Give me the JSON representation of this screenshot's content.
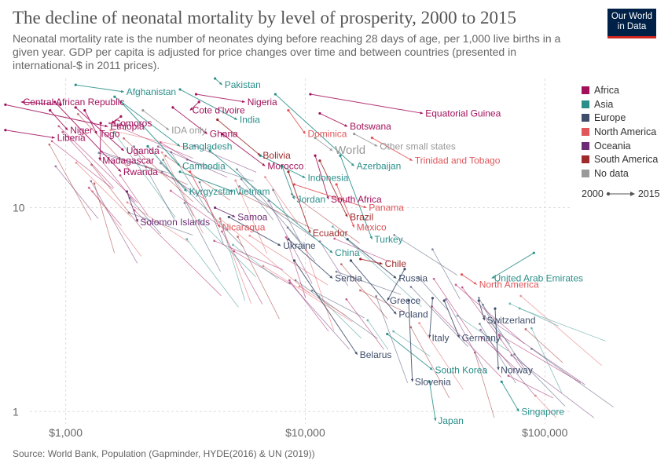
{
  "header": {
    "title": "The decline of neonatal mortality by level of prosperity, 2000 to 2015",
    "subtitle": "Neonatal mortality rate is the number of neonates dying before reaching 28 days of age, per 1,000 live births in a given year. GDP per capita is adjusted for price changes over time and between countries (presented in international-$ in 2011 prices).",
    "logo_line1": "Our World",
    "logo_line2": "in Data"
  },
  "source": "Source: World Bank, Population (Gapminder, HYDE(2016) & UN (2019))",
  "time_legend": {
    "start": "2000",
    "end": "2015"
  },
  "colors": {
    "Africa": "#a2105b",
    "Asia": "#2a8f8a",
    "Europe": "#3f4d6b",
    "North America": "#e0565b",
    "Oceania": "#6b2c75",
    "South America": "#9e2a2b",
    "No data": "#999999"
  },
  "legend": [
    "Africa",
    "Asia",
    "Europe",
    "North America",
    "Oceania",
    "South America",
    "No data"
  ],
  "chart_data": {
    "type": "scatter",
    "x_scale": "log",
    "y_scale": "log",
    "xlim": [
      600,
      130000
    ],
    "ylim": [
      0.87,
      43
    ],
    "x_ticks": [
      {
        "v": 1000,
        "label": "$1,000"
      },
      {
        "v": 10000,
        "label": "$10,000"
      },
      {
        "v": 100000,
        "label": "$100,000"
      }
    ],
    "y_ticks": [
      {
        "v": 1,
        "label": "1"
      },
      {
        "v": 10,
        "label": "10"
      }
    ],
    "countries": [
      {
        "name": "Central African Republic",
        "region": "Africa",
        "x0": 950,
        "y0": 32,
        "x1": 650,
        "y1": 33
      },
      {
        "name": "Liberia",
        "region": "Africa",
        "x0": 560,
        "y0": 24,
        "x1": 900,
        "y1": 22
      },
      {
        "name": "Niger",
        "region": "Africa",
        "x0": 860,
        "y0": 30,
        "x1": 1020,
        "y1": 24
      },
      {
        "name": "Comoros",
        "region": "Africa",
        "x0": 1700,
        "y0": 28,
        "x1": 1550,
        "y1": 26
      },
      {
        "name": "Togo",
        "region": "Africa",
        "x0": 1200,
        "y0": 30,
        "x1": 1350,
        "y1": 23
      },
      {
        "name": "Ethiopia",
        "region": "Africa",
        "x0": 560,
        "y0": 32,
        "x1": 1500,
        "y1": 25
      },
      {
        "name": "Madagascar",
        "region": "Africa",
        "x0": 1400,
        "y0": 26,
        "x1": 1390,
        "y1": 17
      },
      {
        "name": "Uganda",
        "region": "Africa",
        "x0": 1100,
        "y0": 31,
        "x1": 1750,
        "y1": 19
      },
      {
        "name": "Rwanda",
        "region": "Africa",
        "x0": 900,
        "y0": 33,
        "x1": 1700,
        "y1": 15
      },
      {
        "name": "Nigeria",
        "region": "Africa",
        "x0": 3500,
        "y0": 36,
        "x1": 5600,
        "y1": 33
      },
      {
        "name": "Cote d'Ivoire",
        "region": "Africa",
        "x0": 3600,
        "y0": 33,
        "x1": 3300,
        "y1": 30
      },
      {
        "name": "Ghana",
        "region": "Africa",
        "x0": 2800,
        "y0": 31,
        "x1": 3900,
        "y1": 23
      },
      {
        "name": "Equatorial Guinea",
        "region": "Africa",
        "x0": 10500,
        "y0": 36,
        "x1": 31000,
        "y1": 29
      },
      {
        "name": "Botswana",
        "region": "Africa",
        "x0": 11500,
        "y0": 29,
        "x1": 15000,
        "y1": 25
      },
      {
        "name": "Morocco",
        "region": "Africa",
        "x0": 4500,
        "y0": 23,
        "x1": 6800,
        "y1": 16
      },
      {
        "name": "South Africa",
        "region": "Africa",
        "x0": 11000,
        "y0": 18,
        "x1": 12500,
        "y1": 11
      },
      {
        "name": "Pakistan",
        "region": "Asia",
        "x0": 4200,
        "y0": 43,
        "x1": 4500,
        "y1": 40
      },
      {
        "name": "Afghanistan",
        "region": "Asia",
        "x0": 1100,
        "y0": 40,
        "x1": 1750,
        "y1": 37
      },
      {
        "name": "India",
        "region": "Asia",
        "x0": 3000,
        "y0": 38,
        "x1": 5200,
        "y1": 27
      },
      {
        "name": "Bangladesh",
        "region": "Asia",
        "x0": 1600,
        "y0": 35,
        "x1": 3000,
        "y1": 20
      },
      {
        "name": "Cambodia",
        "region": "Asia",
        "x0": 1700,
        "y0": 33,
        "x1": 3000,
        "y1": 16
      },
      {
        "name": "Kyrgyzstan",
        "region": "Asia",
        "x0": 2200,
        "y0": 20,
        "x1": 3200,
        "y1": 12
      },
      {
        "name": "Vietnam",
        "region": "Asia",
        "x0": 3000,
        "y0": 15,
        "x1": 5000,
        "y1": 12
      },
      {
        "name": "Indonesia",
        "region": "Asia",
        "x0": 6500,
        "y0": 18,
        "x1": 10000,
        "y1": 14
      },
      {
        "name": "Azerbaijan",
        "region": "Asia",
        "x0": 7500,
        "y0": 36,
        "x1": 16000,
        "y1": 16
      },
      {
        "name": "Jordan",
        "region": "Asia",
        "x0": 8000,
        "y0": 16,
        "x1": 9000,
        "y1": 11
      },
      {
        "name": "China",
        "region": "Asia",
        "x0": 4000,
        "y0": 19,
        "x1": 13000,
        "y1": 6
      },
      {
        "name": "Turkey",
        "region": "Asia",
        "x0": 14000,
        "y0": 18,
        "x1": 19000,
        "y1": 7
      },
      {
        "name": "United Arab Emirates",
        "region": "Asia",
        "x0": 90000,
        "y0": 6,
        "x1": 60000,
        "y1": 4.5
      },
      {
        "name": "South Korea",
        "region": "Asia",
        "x0": 22000,
        "y0": 2.4,
        "x1": 34000,
        "y1": 1.6
      },
      {
        "name": "Japan",
        "region": "Asia",
        "x0": 33000,
        "y0": 1.4,
        "x1": 35000,
        "y1": 0.9
      },
      {
        "name": "Singapore",
        "region": "Asia",
        "x0": 66000,
        "y0": 1.4,
        "x1": 78000,
        "y1": 1.0
      },
      {
        "name": "Ukraine",
        "region": "Europe",
        "x0": 4800,
        "y0": 9,
        "x1": 7900,
        "y1": 6.5
      },
      {
        "name": "Serbia",
        "region": "Europe",
        "x0": 8500,
        "y0": 7,
        "x1": 13000,
        "y1": 4.5
      },
      {
        "name": "Belarus",
        "region": "Europe",
        "x0": 9000,
        "y0": 5.5,
        "x1": 16500,
        "y1": 1.9
      },
      {
        "name": "Russia",
        "region": "Europe",
        "x0": 15000,
        "y0": 7,
        "x1": 24000,
        "y1": 4.5
      },
      {
        "name": "Greece",
        "region": "Europe",
        "x0": 26000,
        "y0": 5,
        "x1": 22000,
        "y1": 3.5
      },
      {
        "name": "Poland",
        "region": "Europe",
        "x0": 15500,
        "y0": 5.5,
        "x1": 24000,
        "y1": 3
      },
      {
        "name": "Italy",
        "region": "Europe",
        "x0": 34000,
        "y0": 3.6,
        "x1": 33000,
        "y1": 2.3
      },
      {
        "name": "Slovenia",
        "region": "Europe",
        "x0": 27000,
        "y0": 3.5,
        "x1": 28000,
        "y1": 1.4
      },
      {
        "name": "Germany",
        "region": "Europe",
        "x0": 38000,
        "y0": 3.5,
        "x1": 44000,
        "y1": 2.3
      },
      {
        "name": "Switzerland",
        "region": "Europe",
        "x0": 53000,
        "y0": 3.5,
        "x1": 56000,
        "y1": 2.8
      },
      {
        "name": "Norway",
        "region": "Europe",
        "x0": 62000,
        "y0": 3.2,
        "x1": 64000,
        "y1": 1.6
      },
      {
        "name": "Dominica",
        "region": "North America",
        "x0": 8500,
        "y0": 30,
        "x1": 10000,
        "y1": 23
      },
      {
        "name": "Trinidad and Tobago",
        "region": "North America",
        "x0": 19000,
        "y0": 22,
        "x1": 28000,
        "y1": 17
      },
      {
        "name": "Panama",
        "region": "North America",
        "x0": 9000,
        "y0": 13,
        "x1": 18000,
        "y1": 10
      },
      {
        "name": "Mexico",
        "region": "North America",
        "x0": 13500,
        "y0": 13,
        "x1": 16000,
        "y1": 8
      },
      {
        "name": "Nicaragua",
        "region": "North America",
        "x0": 3300,
        "y0": 15,
        "x1": 4400,
        "y1": 8
      },
      {
        "name": "North America",
        "region": "North America",
        "x0": 45000,
        "y0": 4.7,
        "x1": 52000,
        "y1": 4.2
      },
      {
        "name": "Solomon Islands",
        "region": "Oceania",
        "x0": 1800,
        "y0": 12,
        "x1": 2000,
        "y1": 8.5
      },
      {
        "name": "Samoa",
        "region": "Oceania",
        "x0": 4200,
        "y0": 10,
        "x1": 5100,
        "y1": 9
      },
      {
        "name": "Bolivia",
        "region": "South America",
        "x0": 4300,
        "y0": 27,
        "x1": 6500,
        "y1": 18
      },
      {
        "name": "Brazil",
        "region": "South America",
        "x0": 11500,
        "y0": 17,
        "x1": 15000,
        "y1": 9
      },
      {
        "name": "Ecuador",
        "region": "South America",
        "x0": 8500,
        "y0": 15,
        "x1": 10500,
        "y1": 7.5
      },
      {
        "name": "Chile",
        "region": "South America",
        "x0": 17000,
        "y0": 5.6,
        "x1": 21000,
        "y1": 5.3
      },
      {
        "name": "Other small states",
        "region": "No data",
        "x0": 16000,
        "y0": 23,
        "x1": 20000,
        "y1": 20
      },
      {
        "name": "IDA only",
        "region": "No data",
        "x0": 2100,
        "y0": 30,
        "x1": 2700,
        "y1": 24
      },
      {
        "name": "World",
        "region": "No data",
        "x0": 11000,
        "y0": 22,
        "x1": 13000,
        "y1": 19
      }
    ]
  }
}
